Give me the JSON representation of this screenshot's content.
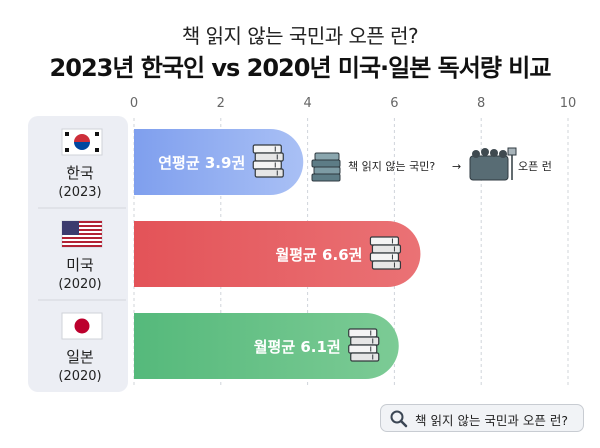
{
  "title_line1": "책 읽지 않는 국민과 오픈 런?",
  "title_line2": "2023년 한국인 vs 2020년 미국·일본 독서량 비교",
  "chart_data": {
    "type": "bar",
    "orientation": "horizontal",
    "xlim": [
      0,
      10
    ],
    "xticks": [
      "0",
      "2",
      "4",
      "6",
      "8",
      "10"
    ],
    "grid": true,
    "categories": [
      {
        "name": "한국",
        "year": "(2023)",
        "flag": "south-korea-flag"
      },
      {
        "name": "미국",
        "year": "(2020)",
        "flag": "usa-flag"
      },
      {
        "name": "일본",
        "year": "(2020)",
        "flag": "japan-flag"
      }
    ],
    "values": [
      3.9,
      6.6,
      6.1
    ],
    "bar_labels": [
      "연평균 3.9권",
      "월평균 6.6권",
      "월평균 6.1권"
    ],
    "colors": [
      "#93aef2",
      "#e65f63",
      "#66c187"
    ],
    "annotation": {
      "left": "책 읽지 않는 국민?",
      "arrow": "→",
      "right": "오픈 런"
    }
  },
  "search_box": {
    "text": "책 읽지 않는 국민과 오픈 런?",
    "icon": "magnifier-icon"
  }
}
